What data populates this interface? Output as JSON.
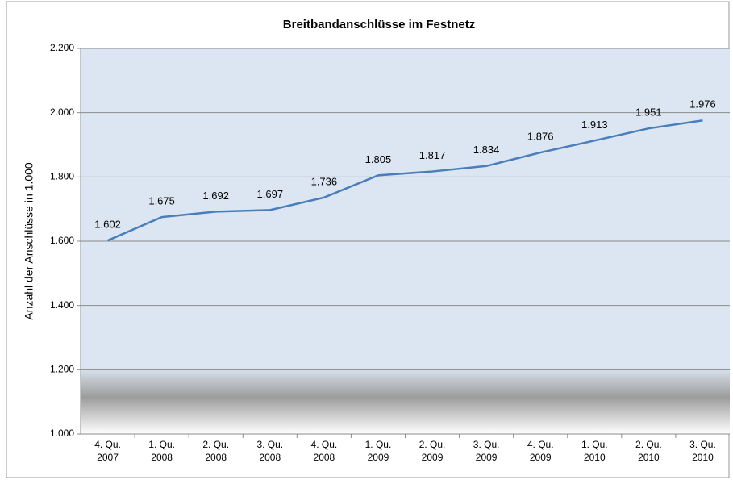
{
  "chart_data": {
    "type": "line",
    "title": "Breitbandanschlüsse im Festnetz",
    "y_label": "Anzahl der Anschlüsse in 1.000",
    "categories": [
      "4. Qu. 2007",
      "1. Qu. 2008",
      "2. Qu. 2008",
      "3. Qu. 2008",
      "4. Qu. 2008",
      "1. Qu. 2009",
      "2. Qu. 2009",
      "3. Qu. 2009",
      "4. Qu. 2009",
      "1. Qu. 2010",
      "2. Qu. 2010",
      "3. Qu. 2010"
    ],
    "values": [
      1602,
      1675,
      1692,
      1697,
      1736,
      1805,
      1817,
      1834,
      1876,
      1913,
      1951,
      1976
    ],
    "value_labels": [
      "1.602",
      "1.675",
      "1.692",
      "1.697",
      "1.736",
      "1.805",
      "1.817",
      "1.834",
      "1.876",
      "1.913",
      "1.951",
      "1.976"
    ],
    "color": "#4a7ebb",
    "ylim": [
      1000,
      2200
    ],
    "yticks": [
      {
        "value": 1000,
        "label": "1.000"
      },
      {
        "value": 1200,
        "label": "1.200"
      },
      {
        "value": 1400,
        "label": "1.400"
      },
      {
        "value": 1600,
        "label": "1.600"
      },
      {
        "value": 1800,
        "label": "1.800"
      },
      {
        "value": 2000,
        "label": "2.000"
      },
      {
        "value": 2200,
        "label": "2.200"
      }
    ],
    "grid": true
  }
}
